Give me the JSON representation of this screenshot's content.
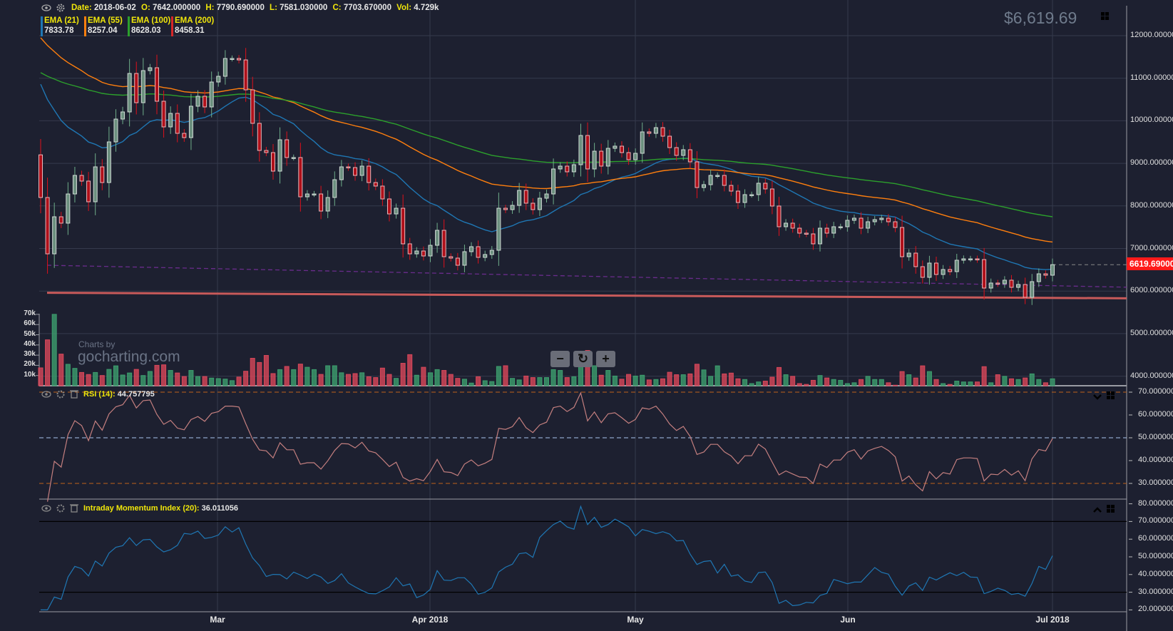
{
  "header": {
    "date_label": "Date:",
    "date": "2018-06-02",
    "open_label": "O:",
    "open": "7642.000000",
    "high_label": "H:",
    "high": "7790.690000",
    "low_label": "L:",
    "low": "7581.030000",
    "close_label": "C:",
    "close": "7703.670000",
    "vol_label": "Vol:",
    "vol": "4.729k"
  },
  "emas": [
    {
      "label": "EMA (21)",
      "value": "7833.78",
      "color": "#1f77b4",
      "period": 21,
      "first_value": 10860
    },
    {
      "label": "EMA (55)",
      "value": "8257.04",
      "color": "#ff7f0e",
      "period": 55,
      "first_value": 11950
    },
    {
      "label": "EMA (100)",
      "value": "8628.03",
      "color": "#2ca02c",
      "period": 100,
      "first_value": 11130
    },
    {
      "label": "EMA (200)",
      "value": "8458.31",
      "color": "#d62728",
      "period": 200
    }
  ],
  "last_price_display": "$6,619.69",
  "last_price_tag": "6619.690000",
  "watermark": {
    "line1": "Charts by",
    "line2": "gocharting.com"
  },
  "zoom_controls": [
    "zoom-out-icon",
    "reset-icon",
    "zoom-in-icon"
  ],
  "price_axis": [
    "12000.000000",
    "11000.000000",
    "10000.000000",
    "9000.000000",
    "8000.000000",
    "7000.000000",
    "6000.000000",
    "5000.000000",
    "4000.000000"
  ],
  "volume_axis": [
    "70k",
    "60k",
    "50k",
    "40k",
    "30k",
    "20k",
    "10k"
  ],
  "rsi": {
    "label": "RSI (14):",
    "value": "44.757795",
    "axis": [
      "70.000000",
      "60.000000",
      "50.000000",
      "40.000000",
      "30.000000"
    ],
    "levels": [
      70,
      50,
      30
    ],
    "color": "#c47f7f"
  },
  "imi": {
    "label": "Intraday Momentum Index (20):",
    "value": "36.011056",
    "axis": [
      "80.000000",
      "70.000000",
      "60.000000",
      "50.000000",
      "40.000000",
      "30.000000",
      "20.000000"
    ],
    "levels": [
      70,
      30
    ],
    "color": "#1f77b4"
  },
  "x_axis": [
    "Mar",
    "Apr 2018",
    "May",
    "Jun",
    "Jul 2018"
  ],
  "colors": {
    "up": "#6b8f7e",
    "down": "#b0101a",
    "vol_up": "#3d9e6e",
    "vol_down": "#d9475a",
    "background": "#1d2030"
  },
  "chart_data": {
    "type": "candlestick",
    "first_open": 9200,
    "close": [
      8198,
      6874,
      7745,
      7595,
      8281,
      8717,
      8583,
      8097,
      8918,
      8549,
      9504,
      10040,
      10208,
      11112,
      10425,
      11179,
      11246,
      10459,
      9856,
      10174,
      9705,
      9605,
      10342,
      10576,
      10325,
      10911,
      11045,
      11464,
      11464,
      11430,
      10727,
      9940,
      9303,
      9253,
      8817,
      9554,
      9137,
      9137,
      8214,
      8281,
      8281,
      7879,
      8198,
      8616,
      8918,
      8901,
      8717,
      8935,
      8549,
      8466,
      8164,
      7812,
      7946,
      7109,
      6874,
      6941,
      6824,
      7075,
      7427,
      6807,
      6774,
      6606,
      6925,
      7042,
      6791,
      6858,
      6958,
      7946,
      7913,
      8013,
      8365,
      8064,
      7913,
      8181,
      8281,
      8868,
      8935,
      8801,
      8968,
      9655,
      8868,
      9286,
      8935,
      9353,
      9404,
      9253,
      9085,
      9236,
      9739,
      9705,
      9839,
      9638,
      9370,
      9186,
      9320,
      9035,
      8432,
      8499,
      8717,
      8717,
      8482,
      8348,
      8080,
      8265,
      8265,
      8533,
      8399,
      7997,
      7511,
      7595,
      7477,
      7360,
      7343,
      7109,
      7477,
      7360,
      7511,
      7511,
      7662,
      7712,
      7477,
      7628,
      7678,
      7712,
      7628,
      7494,
      6807,
      6891,
      6573,
      6322,
      6657,
      6389,
      6506,
      6456,
      6724,
      6757,
      6757,
      6740,
      6070,
      6188,
      6171,
      6255,
      6087,
      6154,
      5853,
      6221,
      6405,
      6372,
      6619.69
    ],
    "volume_k": [
      17.5,
      45,
      70,
      31,
      21,
      17,
      13,
      11,
      13,
      10,
      16,
      19.5,
      10.5,
      12.5,
      16,
      10,
      14,
      20,
      20.5,
      15,
      12.5,
      9,
      15,
      9,
      9,
      7.5,
      7,
      6.5,
      5,
      8.5,
      14.2,
      26.9,
      22.8,
      29.7,
      11.9,
      15.8,
      18.9,
      15.8,
      21.2,
      18.1,
      15.8,
      11.1,
      19.6,
      19.6,
      12.7,
      11.1,
      11.9,
      12.7,
      8.8,
      8,
      17.3,
      11.1,
      7.2,
      22,
      30.5,
      10.3,
      18.1,
      12.7,
      15.8,
      15,
      11.1,
      7.2,
      6.4,
      2.6,
      8.8,
      4.9,
      4.1,
      18.9,
      19.6,
      7.2,
      5.7,
      9.5,
      8,
      8,
      8,
      15.8,
      15,
      8,
      8.8,
      20.4,
      34.6,
      19.6,
      10.3,
      15,
      9.5,
      6.4,
      11.1,
      9.5,
      10.3,
      5.7,
      6.1,
      6.8,
      13.2,
      10.8,
      10.8,
      11.6,
      21.1,
      15.5,
      9.2,
      19.5,
      11.6,
      12.4,
      6.8,
      6.1,
      2.1,
      3.7,
      4.5,
      8.4,
      17.9,
      10.8,
      9.2,
      2.1,
      1.3,
      5.3,
      10,
      7.6,
      6.1,
      5.3,
      2.1,
      2.9,
      6.1,
      9.2,
      6.1,
      6.1,
      2.9,
      0.5,
      13.9,
      10.8,
      7.6,
      19.5,
      13.9,
      6.1,
      2.1,
      1.3,
      4.5,
      3.7,
      3.7,
      3.7,
      18.7,
      2.9,
      10.8,
      9.2,
      6.8,
      6.1,
      7.6,
      11.6,
      6.1,
      2.9,
      6.8
    ],
    "trendlines": [
      {
        "style": "dashed",
        "color": "#6a2c8c",
        "from_price": 6606,
        "to_price": 6090
      },
      {
        "style": "solid",
        "color": "#c85a5a",
        "from_price": 5960,
        "to_price": 5830
      }
    ],
    "ylim": [
      4000,
      12000
    ],
    "xlabel": "",
    "ylabel": ""
  }
}
